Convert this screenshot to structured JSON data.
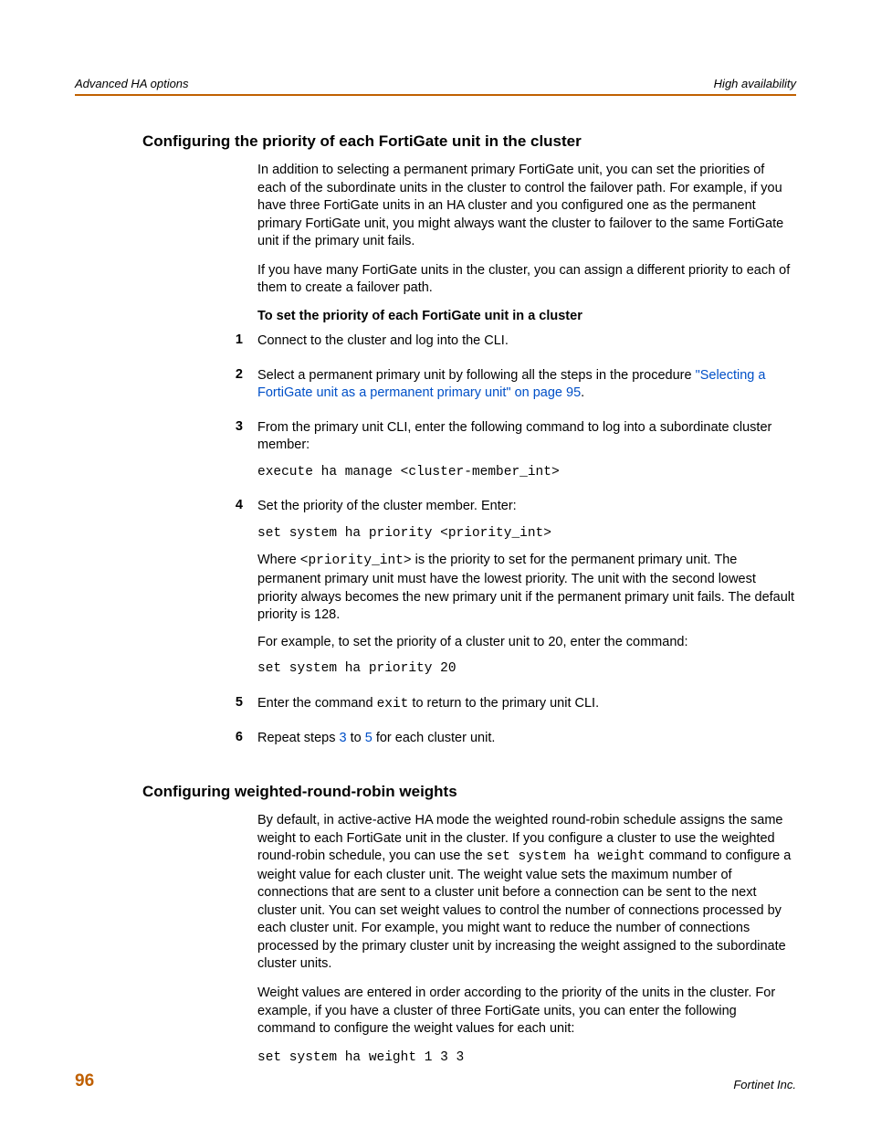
{
  "colors": {
    "rule": "#c06000",
    "link": "#0050c8",
    "pagenum": "#c06000",
    "text": "#000000",
    "bg": "#ffffff"
  },
  "header": {
    "left": "Advanced HA options",
    "right": "High availability"
  },
  "section1": {
    "heading": "Configuring the priority of each FortiGate unit in the cluster",
    "p1": "In addition to selecting a permanent primary FortiGate unit, you can set the priorities of each of the subordinate units in the cluster to control the failover path. For example, if you have three FortiGate units in an HA cluster and you configured one as the permanent primary FortiGate unit, you might always want the cluster to failover to the same FortiGate unit if the primary unit fails.",
    "p2": "If you have many FortiGate units in the cluster, you can assign a different priority to each of them to create a failover path.",
    "procedure_title": "To set the priority of each FortiGate unit in a cluster",
    "steps": {
      "s1_num": "1",
      "s1_text": "Connect to the cluster and log into the CLI.",
      "s2_num": "2",
      "s2_text_a": "Select a permanent primary unit by following all the steps in the procedure ",
      "s2_link": "\"Selecting a FortiGate unit as a permanent primary unit\" on page 95",
      "s2_text_b": ".",
      "s3_num": "3",
      "s3_text": "From the primary unit CLI, enter the following command to log into a subordinate cluster member:",
      "s3_code": "execute ha manage <cluster-member_int>",
      "s4_num": "4",
      "s4_text": "Set the priority of the cluster member. Enter:",
      "s4_code1": "set system ha priority <priority_int>",
      "s4_para_a": "Where ",
      "s4_para_code": "<priority_int>",
      "s4_para_b": " is the priority to set for the permanent primary unit. The permanent primary unit must have the lowest priority. The unit with the second lowest priority always becomes the new primary unit if the permanent primary unit fails. The default priority is 128.",
      "s4_para2": "For example, to set the priority of a cluster unit to 20, enter the command:",
      "s4_code2": "set system ha priority 20",
      "s5_num": "5",
      "s5_text_a": "Enter the command ",
      "s5_code": "exit",
      "s5_text_b": " to return to the primary unit CLI.",
      "s6_num": "6",
      "s6_text_a": "Repeat steps ",
      "s6_link1": "3",
      "s6_text_b": " to ",
      "s6_link2": "5",
      "s6_text_c": " for each cluster unit."
    }
  },
  "section2": {
    "heading": "Configuring weighted-round-robin weights",
    "p1_a": "By default, in active-active HA mode the weighted round-robin schedule assigns the same weight to each FortiGate unit in the cluster. If you configure a cluster to use the weighted round-robin schedule, you can use the ",
    "p1_code": "set system ha weight",
    "p1_b": " command to configure a weight value for each cluster unit. The weight value sets the maximum number of connections that are sent to a cluster unit before a connection can be sent to the next cluster unit. You can set weight values to control the number of connections processed by each cluster unit. For example, you might want to reduce the number of connections processed by the primary cluster unit by increasing the weight assigned to the subordinate cluster units.",
    "p2": "Weight values are entered in order according to the priority of the units in the cluster. For example, if you have a cluster of three FortiGate units, you can enter the following command to configure the weight values for each unit:",
    "code": "set system ha weight 1 3 3"
  },
  "footer": {
    "page": "96",
    "brand": "Fortinet Inc."
  }
}
